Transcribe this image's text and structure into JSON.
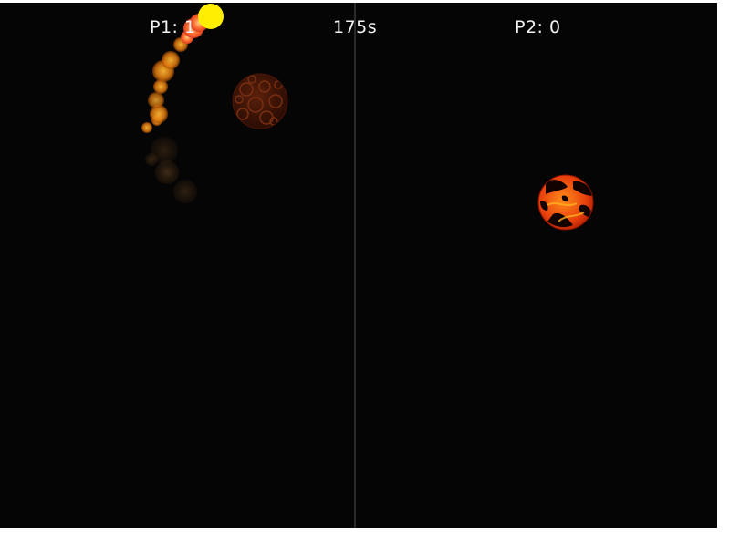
{
  "hud": {
    "p1_score": "P1: 1",
    "timer": "175s",
    "p2_score": "P2: 0"
  },
  "entities": {
    "player_ball": {
      "color": "#ffee00",
      "icon": "yellow-ball-icon"
    },
    "p1_planet": {
      "icon": "dark-lava-planet-icon"
    },
    "p2_planet": {
      "icon": "molten-lava-planet-icon"
    },
    "trail": {
      "icon": "fire-trail-icon"
    }
  },
  "colors": {
    "background": "#050505",
    "divider": "#2a2a2a",
    "hud_text": "#f2f2f2"
  }
}
